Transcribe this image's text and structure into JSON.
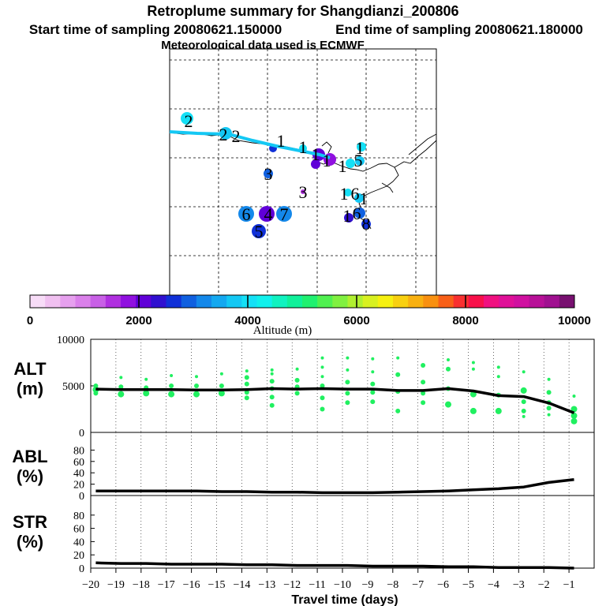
{
  "titles": {
    "main": "Retroplume summary for Shangdianzi_200806",
    "start": "Start time of sampling 20080621.150000",
    "end": "End time of sampling 20080621.180000",
    "met": "Meteorological data used is ECMWF"
  },
  "colorbar": {
    "colors": [
      "#f7dcf7",
      "#f0c0f0",
      "#e6a0ee",
      "#da80ea",
      "#c860e6",
      "#b030e0",
      "#9010e0",
      "#6000d8",
      "#3010d0",
      "#1030d8",
      "#1060e0",
      "#1488ea",
      "#14a8f0",
      "#14c8f4",
      "#14e0f6",
      "#10f0ec",
      "#10f2c0",
      "#10f09a",
      "#20f070",
      "#50f050",
      "#80f040",
      "#b0f030",
      "#d8f020",
      "#f6f010",
      "#f8d010",
      "#f8b010",
      "#f89010",
      "#f86018",
      "#f83030",
      "#f8104a",
      "#f01080",
      "#e01098",
      "#d010a0",
      "#b81098",
      "#a01090",
      "#781070"
    ],
    "ticks": [
      "0",
      "2000",
      "4000",
      "6000",
      "8000",
      "10000"
    ],
    "label": "Altitude (m)"
  },
  "map": {
    "numbers": [
      {
        "t": "2",
        "x": 239,
        "y": 153
      },
      {
        "t": "2",
        "x": 283,
        "y": 170
      },
      {
        "t": "2",
        "x": 299,
        "y": 172
      },
      {
        "t": "1",
        "x": 356,
        "y": 178
      },
      {
        "t": "1",
        "x": 384,
        "y": 186
      },
      {
        "t": "1",
        "x": 400,
        "y": 195
      },
      {
        "t": "1",
        "x": 414,
        "y": 203
      },
      {
        "t": "1",
        "x": 456,
        "y": 187
      },
      {
        "t": "1",
        "x": 434,
        "y": 210
      },
      {
        "t": "3",
        "x": 340,
        "y": 220
      },
      {
        "t": "3",
        "x": 384,
        "y": 243
      },
      {
        "t": "1",
        "x": 436,
        "y": 245
      },
      {
        "t": "6",
        "x": 450,
        "y": 245
      },
      {
        "t": "1",
        "x": 461,
        "y": 251
      },
      {
        "t": "6",
        "x": 312,
        "y": 271
      },
      {
        "t": "4",
        "x": 340,
        "y": 271
      },
      {
        "t": "7",
        "x": 360,
        "y": 271
      },
      {
        "t": "1",
        "x": 440,
        "y": 273
      },
      {
        "t": "6",
        "x": 452,
        "y": 270
      },
      {
        "t": "8",
        "x": 464,
        "y": 283
      },
      {
        "t": "5",
        "x": 328,
        "y": 293
      },
      {
        "t": "5",
        "x": 454,
        "y": 203
      }
    ]
  },
  "panels": {
    "alt": {
      "label1": "ALT",
      "label2": "(m)"
    },
    "abl": {
      "label1": "ABL",
      "label2": "(%)"
    },
    "str": {
      "label1": "STR",
      "label2": "(%)"
    }
  },
  "chart_data": [
    {
      "type": "line",
      "title": "ALT (m)",
      "xlabel": "Travel time (days)",
      "ylabel": "ALT (m)",
      "xlim": [
        -20,
        0
      ],
      "ylim": [
        0,
        10000
      ],
      "yticks": [
        "10000",
        "5000",
        "0"
      ],
      "x": [
        -19.8,
        -18.8,
        -17.8,
        -16.8,
        -15.8,
        -14.8,
        -13.8,
        -12.8,
        -11.8,
        -10.8,
        -9.8,
        -8.8,
        -7.8,
        -6.8,
        -5.8,
        -4.8,
        -3.8,
        -2.8,
        -1.8,
        -0.8
      ],
      "values": [
        4650,
        4600,
        4600,
        4600,
        4550,
        4550,
        4600,
        4700,
        4650,
        4700,
        4650,
        4650,
        4500,
        4500,
        4700,
        4450,
        3950,
        3850,
        3150,
        2100
      ],
      "scatter": [
        {
          "x": -19.8,
          "y": 5000,
          "r": 3
        },
        {
          "x": -19.8,
          "y": 4600,
          "r": 4
        },
        {
          "x": -19.8,
          "y": 4200,
          "r": 3
        },
        {
          "x": -18.8,
          "y": 5900,
          "r": 2
        },
        {
          "x": -18.8,
          "y": 4900,
          "r": 3
        },
        {
          "x": -18.8,
          "y": 4100,
          "r": 4
        },
        {
          "x": -17.8,
          "y": 5700,
          "r": 2
        },
        {
          "x": -17.8,
          "y": 4800,
          "r": 3
        },
        {
          "x": -17.8,
          "y": 4200,
          "r": 4
        },
        {
          "x": -16.8,
          "y": 6100,
          "r": 2
        },
        {
          "x": -16.8,
          "y": 5000,
          "r": 3
        },
        {
          "x": -16.8,
          "y": 4100,
          "r": 4
        },
        {
          "x": -15.8,
          "y": 6000,
          "r": 2
        },
        {
          "x": -15.8,
          "y": 5000,
          "r": 3
        },
        {
          "x": -15.8,
          "y": 4100,
          "r": 4
        },
        {
          "x": -14.8,
          "y": 6300,
          "r": 2
        },
        {
          "x": -14.8,
          "y": 5000,
          "r": 3
        },
        {
          "x": -14.8,
          "y": 4200,
          "r": 4
        },
        {
          "x": -13.8,
          "y": 6600,
          "r": 2
        },
        {
          "x": -13.8,
          "y": 5900,
          "r": 3
        },
        {
          "x": -13.8,
          "y": 5200,
          "r": 3
        },
        {
          "x": -13.8,
          "y": 4300,
          "r": 3
        },
        {
          "x": -13.8,
          "y": 3700,
          "r": 3
        },
        {
          "x": -12.8,
          "y": 6700,
          "r": 2
        },
        {
          "x": -12.8,
          "y": 6300,
          "r": 2
        },
        {
          "x": -12.8,
          "y": 5500,
          "r": 3
        },
        {
          "x": -12.8,
          "y": 4700,
          "r": 3
        },
        {
          "x": -12.8,
          "y": 3800,
          "r": 3
        },
        {
          "x": -12.8,
          "y": 2900,
          "r": 3
        },
        {
          "x": -11.8,
          "y": 6800,
          "r": 2
        },
        {
          "x": -11.8,
          "y": 5600,
          "r": 3
        },
        {
          "x": -11.8,
          "y": 4900,
          "r": 3
        },
        {
          "x": -11.8,
          "y": 4200,
          "r": 3
        },
        {
          "x": -10.8,
          "y": 8000,
          "r": 2
        },
        {
          "x": -10.8,
          "y": 7000,
          "r": 2
        },
        {
          "x": -10.8,
          "y": 6000,
          "r": 2
        },
        {
          "x": -10.8,
          "y": 5000,
          "r": 3
        },
        {
          "x": -10.8,
          "y": 3700,
          "r": 3
        },
        {
          "x": -10.8,
          "y": 2500,
          "r": 3
        },
        {
          "x": -9.8,
          "y": 8000,
          "r": 2
        },
        {
          "x": -9.8,
          "y": 6700,
          "r": 2
        },
        {
          "x": -9.8,
          "y": 5400,
          "r": 3
        },
        {
          "x": -9.8,
          "y": 4200,
          "r": 3
        },
        {
          "x": -9.8,
          "y": 3200,
          "r": 3
        },
        {
          "x": -8.8,
          "y": 7900,
          "r": 2
        },
        {
          "x": -8.8,
          "y": 6500,
          "r": 2
        },
        {
          "x": -8.8,
          "y": 5200,
          "r": 3
        },
        {
          "x": -8.8,
          "y": 4300,
          "r": 3
        },
        {
          "x": -8.8,
          "y": 3300,
          "r": 3
        },
        {
          "x": -7.8,
          "y": 8000,
          "r": 2
        },
        {
          "x": -7.8,
          "y": 6200,
          "r": 3
        },
        {
          "x": -7.8,
          "y": 4400,
          "r": 3
        },
        {
          "x": -7.8,
          "y": 2300,
          "r": 3
        },
        {
          "x": -6.8,
          "y": 7200,
          "r": 3
        },
        {
          "x": -6.8,
          "y": 5400,
          "r": 3
        },
        {
          "x": -6.8,
          "y": 4200,
          "r": 3
        },
        {
          "x": -6.8,
          "y": 3200,
          "r": 3
        },
        {
          "x": -5.8,
          "y": 7800,
          "r": 2
        },
        {
          "x": -5.8,
          "y": 6800,
          "r": 3
        },
        {
          "x": -5.8,
          "y": 4700,
          "r": 3
        },
        {
          "x": -5.8,
          "y": 3000,
          "r": 4
        },
        {
          "x": -4.8,
          "y": 7500,
          "r": 2
        },
        {
          "x": -4.8,
          "y": 6800,
          "r": 2
        },
        {
          "x": -4.8,
          "y": 4100,
          "r": 4
        },
        {
          "x": -4.8,
          "y": 2300,
          "r": 4
        },
        {
          "x": -3.8,
          "y": 7000,
          "r": 2
        },
        {
          "x": -3.8,
          "y": 6000,
          "r": 2
        },
        {
          "x": -3.8,
          "y": 4000,
          "r": 3
        },
        {
          "x": -3.8,
          "y": 2300,
          "r": 4
        },
        {
          "x": -2.8,
          "y": 6500,
          "r": 2
        },
        {
          "x": -2.8,
          "y": 4500,
          "r": 4
        },
        {
          "x": -2.8,
          "y": 3300,
          "r": 3
        },
        {
          "x": -2.8,
          "y": 2300,
          "r": 3
        },
        {
          "x": -2.8,
          "y": 1700,
          "r": 2
        },
        {
          "x": -1.8,
          "y": 5700,
          "r": 2
        },
        {
          "x": -1.8,
          "y": 4300,
          "r": 3
        },
        {
          "x": -1.8,
          "y": 3200,
          "r": 3
        },
        {
          "x": -1.8,
          "y": 2600,
          "r": 3
        },
        {
          "x": -1.8,
          "y": 1900,
          "r": 2
        },
        {
          "x": -0.8,
          "y": 3900,
          "r": 2
        },
        {
          "x": -0.8,
          "y": 2500,
          "r": 4
        },
        {
          "x": -0.8,
          "y": 1800,
          "r": 4
        },
        {
          "x": -0.8,
          "y": 1200,
          "r": 4
        }
      ]
    },
    {
      "type": "line",
      "title": "ABL (%)",
      "ylabel": "ABL (%)",
      "xlim": [
        -20,
        0
      ],
      "ylim": [
        0,
        100
      ],
      "yticks": [
        "80",
        "60",
        "40",
        "20",
        "0"
      ],
      "x": [
        -19.8,
        -18.8,
        -17.8,
        -16.8,
        -15.8,
        -14.8,
        -13.8,
        -12.8,
        -11.8,
        -10.8,
        -9.8,
        -8.8,
        -7.8,
        -6.8,
        -5.8,
        -4.8,
        -3.8,
        -2.8,
        -1.8,
        -0.8
      ],
      "values": [
        8,
        8,
        8,
        8,
        8,
        7,
        7,
        6,
        6,
        5,
        5,
        5,
        6,
        7,
        8,
        10,
        12,
        15,
        23,
        28
      ]
    },
    {
      "type": "line",
      "title": "STR (%)",
      "ylabel": "STR (%)",
      "xlim": [
        -20,
        0
      ],
      "ylim": [
        0,
        100
      ],
      "yticks": [
        "80",
        "60",
        "40",
        "20",
        "0"
      ],
      "xticks": [
        "−20",
        "−19",
        "−18",
        "−17",
        "−16",
        "−15",
        "−14",
        "−13",
        "−12",
        "−11",
        "−10",
        "−9",
        "−8",
        "−7",
        "−6",
        "−5",
        "−4",
        "−3",
        "−2",
        "−1"
      ],
      "x": [
        -19.8,
        -18.8,
        -17.8,
        -16.8,
        -15.8,
        -14.8,
        -13.8,
        -12.8,
        -11.8,
        -10.8,
        -9.8,
        -8.8,
        -7.8,
        -6.8,
        -5.8,
        -4.8,
        -3.8,
        -2.8,
        -1.8,
        -0.8
      ],
      "values": [
        8,
        7,
        7,
        6,
        6,
        6,
        5,
        5,
        4,
        4,
        4,
        3,
        3,
        3,
        2,
        2,
        1,
        1,
        1,
        0
      ]
    }
  ]
}
